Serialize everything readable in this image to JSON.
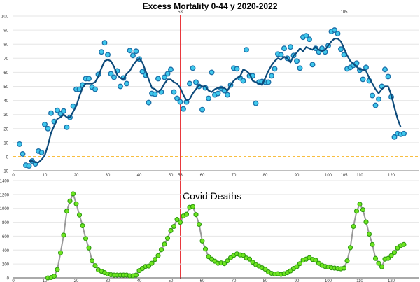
{
  "chart_data": [
    {
      "type": "scatter",
      "title": "Excess Mortality 0-44 y 2020-2022",
      "xlim": [
        0,
        128
      ],
      "ylim": [
        -10,
        100
      ],
      "x_ticks": [
        0,
        10,
        20,
        30,
        40,
        50,
        60,
        70,
        80,
        90,
        100,
        110,
        120
      ],
      "y_ticks": [
        -10,
        0,
        10,
        20,
        30,
        40,
        50,
        60,
        70,
        80,
        90,
        100
      ],
      "grid": true,
      "reference_line": {
        "y": 0,
        "style": "dashed",
        "color": "#f5a800"
      },
      "markers": [
        {
          "x": 53,
          "label": "53"
        },
        {
          "x": 105,
          "label": "105"
        }
      ],
      "marker_color": "#e8383d",
      "point_color": "#3fc8ec",
      "point_edge_color": "#1a6fa8",
      "trend_color": "#0d4a7a",
      "points": {
        "x": [
          2,
          3,
          4,
          5,
          6,
          7,
          8,
          9,
          10,
          11,
          12,
          13,
          14,
          15,
          16,
          17,
          18,
          19,
          20,
          21,
          22,
          23,
          24,
          25,
          26,
          27,
          28,
          29,
          30,
          31,
          32,
          33,
          34,
          35,
          36,
          37,
          38,
          39,
          40,
          41,
          42,
          43,
          44,
          45,
          46,
          47,
          48,
          49,
          50,
          51,
          52,
          53,
          54,
          55,
          56,
          57,
          58,
          59,
          60,
          61,
          62,
          63,
          64,
          65,
          66,
          67,
          68,
          69,
          70,
          71,
          72,
          73,
          74,
          75,
          76,
          77,
          78,
          79,
          80,
          81,
          82,
          83,
          84,
          85,
          86,
          87,
          88,
          89,
          90,
          91,
          92,
          93,
          94,
          95,
          96,
          97,
          98,
          99,
          100,
          101,
          102,
          103,
          104,
          105,
          106,
          107,
          108,
          109,
          110,
          111,
          112,
          113,
          114,
          115,
          116,
          117,
          118,
          119,
          120,
          121,
          122,
          123,
          124
        ],
        "y": [
          9,
          2,
          -6,
          -6.5,
          -3,
          -5,
          4,
          3,
          23,
          20,
          31,
          25,
          33,
          30.5,
          32.5,
          21,
          28,
          36,
          48,
          48,
          51,
          55.5,
          55.5,
          49.5,
          48,
          58.5,
          74.5,
          81,
          72.5,
          59,
          56.5,
          61,
          50,
          56,
          52,
          75.5,
          72,
          75,
          69.5,
          60.5,
          58,
          38.5,
          45,
          44.5,
          55.5,
          46,
          56.5,
          59,
          62,
          46,
          41.5,
          39,
          34,
          39,
          52,
          63,
          53,
          50,
          33.5,
          49,
          41.5,
          60,
          44,
          45,
          48.5,
          47,
          44,
          51,
          63,
          62.5,
          56,
          54,
          76,
          57.5,
          57.5,
          38,
          53,
          53.5,
          53,
          53,
          57.5,
          62.5,
          73,
          72.5,
          77,
          70,
          78,
          72,
          68,
          63,
          85,
          86,
          83.5,
          65.5,
          77,
          74.5,
          77,
          74.5,
          79,
          89,
          90,
          87.5,
          76.5,
          72.5,
          62.5,
          63.5,
          65,
          66.5,
          61.5,
          55,
          63.5,
          54,
          43.5,
          36.5,
          41,
          50,
          62,
          57,
          42.5,
          14,
          16.5,
          16,
          16.5
        ]
      },
      "trend": {
        "x": [
          5,
          6,
          7,
          8,
          9,
          10,
          11,
          12,
          13,
          14,
          15,
          16,
          17,
          18,
          19,
          20,
          21,
          22,
          23,
          24,
          25,
          26,
          27,
          28,
          29,
          30,
          31,
          32,
          33,
          34,
          35,
          36,
          37,
          38,
          39,
          40,
          41,
          42,
          43,
          44,
          45,
          46,
          47,
          48,
          49,
          50,
          51,
          52,
          53,
          54,
          55,
          56,
          57,
          58,
          59,
          60,
          61,
          62,
          63,
          64,
          65,
          66,
          67,
          68,
          69,
          70,
          71,
          72,
          73,
          74,
          75,
          76,
          77,
          78,
          79,
          80,
          81,
          82,
          83,
          84,
          85,
          86,
          87,
          88,
          89,
          90,
          91,
          92,
          93,
          94,
          95,
          96,
          97,
          98,
          99,
          100,
          101,
          102,
          103,
          104,
          105,
          106,
          107,
          108,
          109,
          110,
          111,
          112,
          113,
          114,
          115,
          116,
          117,
          118,
          119,
          120,
          121,
          122,
          123
        ],
        "y": [
          -3,
          -3,
          -4,
          -4,
          -2,
          1,
          8,
          17,
          22,
          27,
          28,
          30,
          28,
          28,
          32,
          36,
          43,
          49,
          52,
          52,
          52,
          53,
          57,
          63,
          68,
          69,
          68,
          64,
          58,
          56,
          55,
          59,
          61,
          65,
          68,
          70,
          67,
          61,
          55,
          49,
          48,
          46,
          48,
          52,
          55,
          55,
          53,
          52,
          49,
          44,
          40,
          41,
          45,
          48,
          51,
          50,
          50,
          47,
          46,
          48,
          49,
          49,
          49,
          47,
          51,
          54,
          56,
          57,
          62,
          61,
          59,
          54,
          53,
          52,
          51,
          56,
          61,
          65,
          68,
          70,
          69,
          71,
          70,
          67,
          72,
          74,
          77,
          75,
          78,
          77,
          76,
          78,
          76,
          75,
          76,
          79,
          82,
          84,
          84,
          82,
          77,
          72,
          68,
          66,
          64,
          62,
          62,
          61,
          56,
          52,
          48,
          45,
          48,
          50,
          50,
          44,
          35,
          27,
          21
        ]
      }
    },
    {
      "type": "line",
      "title": "Covid Deaths",
      "xlim": [
        0,
        128
      ],
      "ylim": [
        0,
        1400
      ],
      "x_ticks": [
        0,
        10,
        20,
        30,
        40,
        50,
        60,
        70,
        80,
        90,
        100,
        110,
        120
      ],
      "y_ticks": [
        0,
        200,
        400,
        600,
        800,
        1000,
        1200,
        1400
      ],
      "grid": true,
      "markers": [
        {
          "x": 53,
          "label": "53"
        },
        {
          "x": 105,
          "label": "105"
        }
      ],
      "point_color": "#6ee620",
      "point_edge_color": "#2f9a10",
      "line_color": "#999999",
      "x": [
        11,
        12,
        13,
        14,
        15,
        16,
        17,
        18,
        19,
        20,
        21,
        22,
        23,
        24,
        25,
        26,
        27,
        28,
        29,
        30,
        31,
        32,
        33,
        34,
        35,
        36,
        37,
        38,
        39,
        40,
        41,
        42,
        43,
        44,
        45,
        46,
        47,
        48,
        49,
        50,
        51,
        52,
        53,
        54,
        55,
        56,
        57,
        58,
        59,
        60,
        61,
        62,
        63,
        64,
        65,
        66,
        67,
        68,
        69,
        70,
        71,
        72,
        73,
        74,
        75,
        76,
        77,
        78,
        79,
        80,
        81,
        82,
        83,
        84,
        85,
        86,
        87,
        88,
        89,
        90,
        91,
        92,
        93,
        94,
        95,
        96,
        97,
        98,
        99,
        100,
        101,
        102,
        103,
        104,
        105,
        106,
        107,
        108,
        109,
        110,
        111,
        112,
        113,
        114,
        115,
        116,
        117,
        118,
        119,
        120,
        121,
        122,
        123,
        124
      ],
      "y": [
        0,
        5,
        25,
        120,
        360,
        615,
        960,
        1105,
        1210,
        1065,
        905,
        750,
        565,
        430,
        245,
        175,
        115,
        95,
        75,
        55,
        45,
        40,
        40,
        40,
        40,
        40,
        30,
        30,
        40,
        105,
        135,
        165,
        170,
        210,
        265,
        320,
        405,
        485,
        570,
        680,
        740,
        840,
        800,
        890,
        915,
        1015,
        1025,
        910,
        770,
        530,
        415,
        305,
        270,
        240,
        210,
        215,
        205,
        245,
        290,
        325,
        345,
        330,
        325,
        285,
        270,
        225,
        190,
        170,
        145,
        125,
        85,
        65,
        55,
        60,
        50,
        60,
        75,
        100,
        135,
        160,
        205,
        255,
        270,
        290,
        265,
        255,
        210,
        180,
        165,
        155,
        145,
        140,
        135,
        130,
        140,
        245,
        435,
        740,
        960,
        1060,
        980,
        805,
        630,
        480,
        280,
        210,
        160,
        270,
        280,
        320,
        365,
        430,
        465,
        480
      ]
    }
  ]
}
